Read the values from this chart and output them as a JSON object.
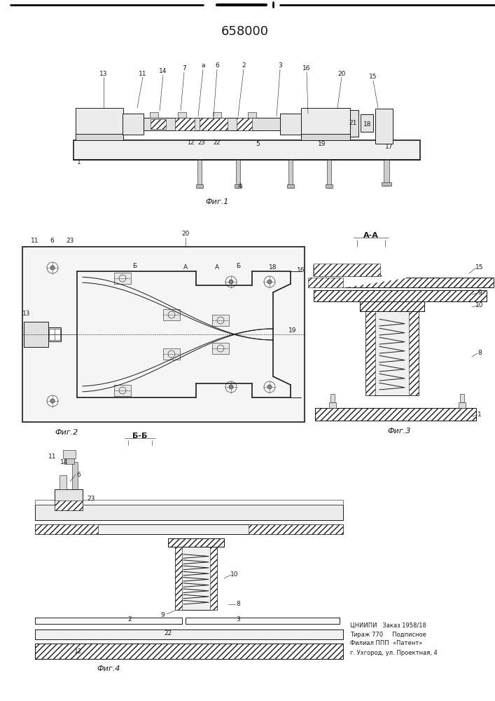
{
  "title": "658000",
  "bg_color": "#ffffff",
  "fig_width": 7.07,
  "fig_height": 10.0,
  "line_color": "#1a1a1a",
  "footer_text_lines": [
    "ЦНИИПИ   Заказ 1958/18",
    "Тираж 770     Подписное",
    "Филиал ППП  «Патент»",
    "г. Ухгород, ул. Проектная, 4"
  ]
}
